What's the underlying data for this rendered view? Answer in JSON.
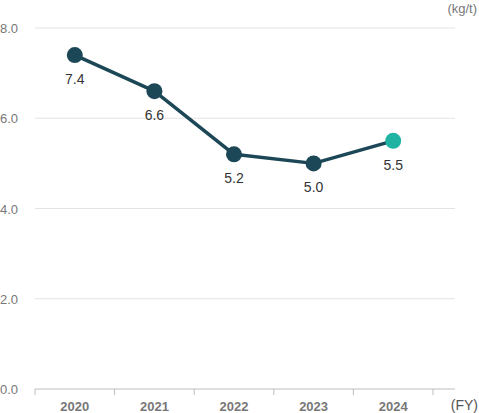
{
  "chart_data": {
    "type": "line",
    "y_label": "(kg/t)",
    "x_label": "(FY)",
    "categories": [
      "2020",
      "2021",
      "2022",
      "2023",
      "2024"
    ],
    "series": [
      {
        "name": "kg/t",
        "color": "#1c4756",
        "colors": [
          "#1c4756",
          "#1c4756",
          "#1c4756",
          "#1c4756",
          "#1fb3a3"
        ],
        "marker": "circle",
        "values": [
          7.4,
          6.6,
          5.2,
          5.0,
          5.5
        ],
        "value_labels": [
          "7.4",
          "6.6",
          "5.2",
          "5.0",
          "5.5"
        ]
      }
    ],
    "ylim": [
      0,
      8
    ],
    "yticks": [
      {
        "value": 0,
        "label": "0.0"
      },
      {
        "value": 2,
        "label": "2.0"
      },
      {
        "value": 4,
        "label": "4.0"
      },
      {
        "value": 6,
        "label": "6.0"
      },
      {
        "value": 8,
        "label": "8.0"
      }
    ],
    "grid": true,
    "data_labels": true
  }
}
